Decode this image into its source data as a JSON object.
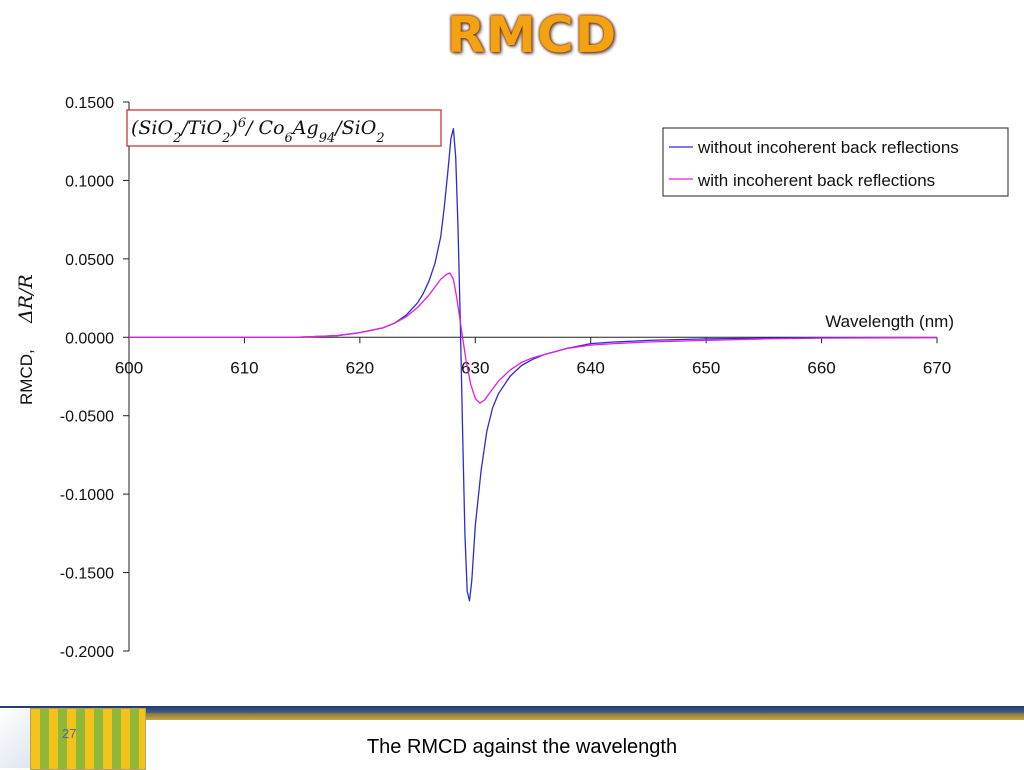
{
  "slide": {
    "title": "RMCD",
    "caption": "The RMCD against the wavelength",
    "page_number": "27"
  },
  "colors": {
    "title_fill": "#f2a30f",
    "series_without": "#2b2bd6",
    "series_with": "#e020e0",
    "annotation_border": "#c0282a"
  },
  "chart_data": {
    "type": "line",
    "title": "",
    "xlabel": "Wavelength (nm)",
    "ylabel": "RMCD,",
    "ylabel_math": "ΔR/R",
    "annotation": {
      "text": "(SiO2/TiO2)6/ Co6Ag94/SiO2",
      "segments": [
        {
          "t": "(SiO"
        },
        {
          "t": "2",
          "sub": true
        },
        {
          "t": "/TiO"
        },
        {
          "t": "2",
          "sub": true
        },
        {
          "t": ")"
        },
        {
          "t": "6",
          "sup": true
        },
        {
          "t": "/ Co"
        },
        {
          "t": "6",
          "sub": true
        },
        {
          "t": "Ag"
        },
        {
          "t": "94",
          "sub": true
        },
        {
          "t": "/SiO"
        },
        {
          "t": "2",
          "sub": true
        }
      ]
    },
    "xlim": [
      600,
      670
    ],
    "ylim": [
      -0.2,
      0.15
    ],
    "x_ticks": [
      600,
      610,
      620,
      630,
      640,
      650,
      660,
      670
    ],
    "y_ticks": [
      0.15,
      0.1,
      0.05,
      0.0,
      -0.05,
      -0.1,
      -0.15,
      -0.2
    ],
    "y_tick_labels": [
      "0.1500",
      "0.1000",
      "0.0500",
      "0.0000",
      "-0.0500",
      "-0.1000",
      "-0.1500",
      "-0.2000"
    ],
    "x_tick_labels": [
      "600",
      "610",
      "620",
      "630",
      "640",
      "650",
      "660",
      "670"
    ],
    "legend_position": "top-right",
    "grid": false,
    "series": [
      {
        "name": "without incoherent back reflections",
        "color": "#2b2bd6",
        "x": [
          614.5,
          618,
          620,
          622,
          623,
          624,
          625,
          625.5,
          626,
          626.5,
          627,
          627.3,
          627.6,
          627.9,
          628.1,
          628.3,
          628.5,
          628.7,
          628.9,
          629.1,
          629.3,
          629.5,
          629.7,
          630,
          630.5,
          631,
          631.5,
          632,
          633,
          634,
          635,
          636,
          637,
          638,
          640,
          642,
          645,
          650,
          655,
          660,
          670
        ],
        "y": [
          0.0,
          0.001,
          0.003,
          0.006,
          0.009,
          0.014,
          0.022,
          0.028,
          0.036,
          0.047,
          0.064,
          0.082,
          0.104,
          0.127,
          0.133,
          0.115,
          0.07,
          0.01,
          -0.06,
          -0.125,
          -0.162,
          -0.168,
          -0.155,
          -0.12,
          -0.085,
          -0.06,
          -0.045,
          -0.036,
          -0.025,
          -0.018,
          -0.014,
          -0.011,
          -0.009,
          -0.007,
          -0.004,
          -0.003,
          -0.002,
          -0.001,
          -0.0005,
          -0.0003,
          -0.0002
        ]
      },
      {
        "name": "with incoherent back reflections",
        "color": "#e020e0",
        "x": [
          600,
          614.5,
          618,
          620,
          622,
          623,
          624,
          625,
          626,
          626.5,
          627,
          627.5,
          627.8,
          628.1,
          628.4,
          628.8,
          629.2,
          629.6,
          630,
          630.4,
          630.8,
          631.5,
          632,
          633,
          634,
          635,
          636,
          637,
          638,
          640,
          642,
          645,
          650,
          655,
          660,
          670
        ],
        "y": [
          0.0,
          0.0,
          0.001,
          0.003,
          0.006,
          0.009,
          0.013,
          0.019,
          0.027,
          0.032,
          0.037,
          0.04,
          0.041,
          0.037,
          0.025,
          0.005,
          -0.015,
          -0.03,
          -0.039,
          -0.042,
          -0.04,
          -0.033,
          -0.028,
          -0.021,
          -0.016,
          -0.013,
          -0.011,
          -0.009,
          -0.007,
          -0.005,
          -0.004,
          -0.003,
          -0.002,
          -0.001,
          -0.0005,
          -0.0002
        ]
      }
    ]
  }
}
